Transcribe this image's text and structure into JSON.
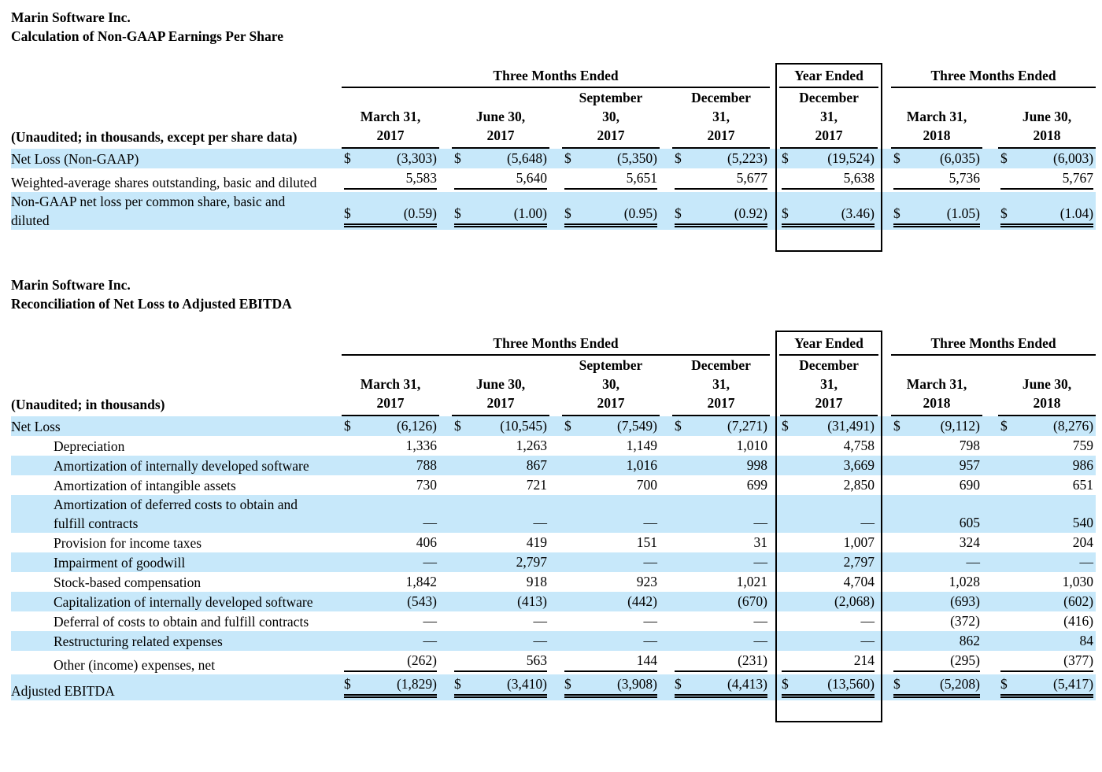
{
  "currency_symbol": "$",
  "colors": {
    "stripe_highlight": "#c7e8fa",
    "text": "#000000",
    "rule_lines": "#000000",
    "background": "#ffffff"
  },
  "tables": [
    {
      "company": "Marin Software Inc.",
      "subtitle": "Calculation of Non-GAAP Earnings Per Share",
      "unaudited_note": "(Unaudited; in thousands, except per share data)",
      "col_groups": [
        {
          "label": "Three Months Ended"
        },
        {
          "label": "Year Ended"
        },
        {
          "label": "Three Months Ended"
        }
      ],
      "columns": [
        {
          "lines": [
            "March 31,",
            "2017"
          ]
        },
        {
          "lines": [
            "June 30,",
            "2017"
          ]
        },
        {
          "lines": [
            "September",
            "30,",
            "2017"
          ]
        },
        {
          "lines": [
            "December",
            "31,",
            "2017"
          ]
        },
        {
          "lines": [
            "December",
            "31,",
            "2017"
          ]
        },
        {
          "lines": [
            "March 31,",
            "2018"
          ]
        },
        {
          "lines": [
            "June 30,",
            "2018"
          ]
        }
      ],
      "rows": [
        {
          "label": "Net Loss (Non-GAAP)",
          "indent": false,
          "stripe": true,
          "dollar": true,
          "underline": "none",
          "values": [
            "(3,303)",
            "(5,648)",
            "(5,350)",
            "(5,223)",
            "(19,524)",
            "(6,035)",
            "(6,003)"
          ]
        },
        {
          "label": "Weighted-average shares outstanding, basic and diluted",
          "indent": false,
          "stripe": false,
          "dollar": false,
          "underline": "single",
          "values": [
            "5,583",
            "5,640",
            "5,651",
            "5,677",
            "5,638",
            "5,736",
            "5,767"
          ]
        },
        {
          "label": "Non-GAAP net loss per common share, basic and diluted",
          "indent": false,
          "stripe": true,
          "dollar": true,
          "underline": "double",
          "values": [
            "(0.59)",
            "(1.00)",
            "(0.95)",
            "(0.92)",
            "(3.46)",
            "(1.05)",
            "(1.04)"
          ]
        }
      ]
    },
    {
      "company": "Marin Software Inc.",
      "subtitle": "Reconciliation of Net Loss to Adjusted EBITDA",
      "unaudited_note": "(Unaudited; in thousands)",
      "col_groups": [
        {
          "label": "Three Months Ended"
        },
        {
          "label": "Year Ended"
        },
        {
          "label": "Three Months Ended"
        }
      ],
      "columns": [
        {
          "lines": [
            "March 31,",
            "2017"
          ]
        },
        {
          "lines": [
            "June 30,",
            "2017"
          ]
        },
        {
          "lines": [
            "September",
            "30,",
            "2017"
          ]
        },
        {
          "lines": [
            "December",
            "31,",
            "2017"
          ]
        },
        {
          "lines": [
            "December",
            "31,",
            "2017"
          ]
        },
        {
          "lines": [
            "March 31,",
            "2018"
          ]
        },
        {
          "lines": [
            "June 30,",
            "2018"
          ]
        }
      ],
      "rows": [
        {
          "label": "Net Loss",
          "indent": false,
          "stripe": true,
          "dollar": true,
          "underline": "none",
          "values": [
            "(6,126)",
            "(10,545)",
            "(7,549)",
            "(7,271)",
            "(31,491)",
            "(9,112)",
            "(8,276)"
          ]
        },
        {
          "label": "Depreciation",
          "indent": true,
          "stripe": false,
          "dollar": false,
          "underline": "none",
          "values": [
            "1,336",
            "1,263",
            "1,149",
            "1,010",
            "4,758",
            "798",
            "759"
          ]
        },
        {
          "label": "Amortization of internally developed software",
          "indent": true,
          "stripe": true,
          "dollar": false,
          "underline": "none",
          "values": [
            "788",
            "867",
            "1,016",
            "998",
            "3,669",
            "957",
            "986"
          ]
        },
        {
          "label": "Amortization of intangible assets",
          "indent": true,
          "stripe": false,
          "dollar": false,
          "underline": "none",
          "values": [
            "730",
            "721",
            "700",
            "699",
            "2,850",
            "690",
            "651"
          ]
        },
        {
          "label": "Amortization of deferred costs to obtain and fulfill contracts",
          "indent": true,
          "stripe": true,
          "dollar": false,
          "underline": "none",
          "values": [
            "—",
            "—",
            "—",
            "—",
            "—",
            "605",
            "540"
          ]
        },
        {
          "label": "Provision for income taxes",
          "indent": true,
          "stripe": false,
          "dollar": false,
          "underline": "none",
          "values": [
            "406",
            "419",
            "151",
            "31",
            "1,007",
            "324",
            "204"
          ]
        },
        {
          "label": "Impairment of goodwill",
          "indent": true,
          "stripe": true,
          "dollar": false,
          "underline": "none",
          "values": [
            "—",
            "2,797",
            "—",
            "—",
            "2,797",
            "—",
            "—"
          ]
        },
        {
          "label": "Stock-based compensation",
          "indent": true,
          "stripe": false,
          "dollar": false,
          "underline": "none",
          "values": [
            "1,842",
            "918",
            "923",
            "1,021",
            "4,704",
            "1,028",
            "1,030"
          ]
        },
        {
          "label": "Capitalization of internally developed software",
          "indent": true,
          "stripe": true,
          "dollar": false,
          "underline": "none",
          "values": [
            "(543)",
            "(413)",
            "(442)",
            "(670)",
            "(2,068)",
            "(693)",
            "(602)"
          ]
        },
        {
          "label": "Deferral of costs to obtain and fulfill contracts",
          "indent": true,
          "stripe": false,
          "dollar": false,
          "underline": "none",
          "values": [
            "—",
            "—",
            "—",
            "—",
            "—",
            "(372)",
            "(416)"
          ]
        },
        {
          "label": "Restructuring related expenses",
          "indent": true,
          "stripe": true,
          "dollar": false,
          "underline": "none",
          "values": [
            "—",
            "—",
            "—",
            "—",
            "—",
            "862",
            "84"
          ]
        },
        {
          "label": "Other (income) expenses, net",
          "indent": true,
          "stripe": false,
          "dollar": false,
          "underline": "single",
          "values": [
            "(262)",
            "563",
            "144",
            "(231)",
            "214",
            "(295)",
            "(377)"
          ]
        },
        {
          "label": "Adjusted EBITDA",
          "indent": false,
          "stripe": true,
          "dollar": true,
          "underline": "double",
          "values": [
            "(1,829)",
            "(3,410)",
            "(3,908)",
            "(4,413)",
            "(13,560)",
            "(5,208)",
            "(5,417)"
          ]
        }
      ]
    }
  ]
}
